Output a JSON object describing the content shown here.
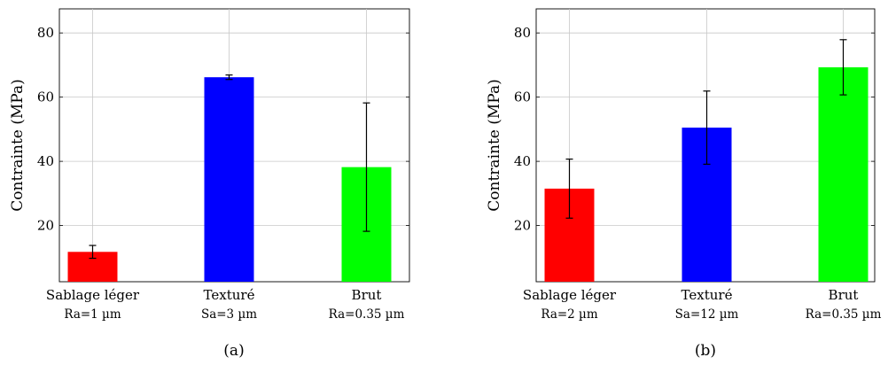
{
  "chart_data": [
    {
      "type": "bar",
      "caption": "(a)",
      "ylabel": "Contrainte (MPa)",
      "ylim": [
        2.5,
        87.5
      ],
      "yticks": [
        20,
        40,
        60,
        80
      ],
      "grid": true,
      "categories": [
        "Sablage léger",
        "Texturé",
        "Brut"
      ],
      "sublabels": [
        "Ra=1 µm",
        "Sa=3 µm",
        "Ra=0.35 µm"
      ],
      "values": [
        11.8,
        66.2,
        38.2
      ],
      "errors": [
        2.0,
        0.7,
        20.0
      ],
      "colors": [
        "#ff0000",
        "#0000ff",
        "#00ff00"
      ]
    },
    {
      "type": "bar",
      "caption": "(b)",
      "ylabel": "Contrainte (MPa)",
      "ylim": [
        2.5,
        87.5
      ],
      "yticks": [
        20,
        40,
        60,
        80
      ],
      "grid": true,
      "categories": [
        "Sablage léger",
        "Texturé",
        "Brut"
      ],
      "sublabels": [
        "Ra=2 µm",
        "Sa=12 µm",
        "Ra=0.35 µm"
      ],
      "values": [
        31.5,
        50.5,
        69.3
      ],
      "errors": [
        9.2,
        11.4,
        8.6
      ],
      "colors": [
        "#ff0000",
        "#0000ff",
        "#00ff00"
      ]
    }
  ]
}
